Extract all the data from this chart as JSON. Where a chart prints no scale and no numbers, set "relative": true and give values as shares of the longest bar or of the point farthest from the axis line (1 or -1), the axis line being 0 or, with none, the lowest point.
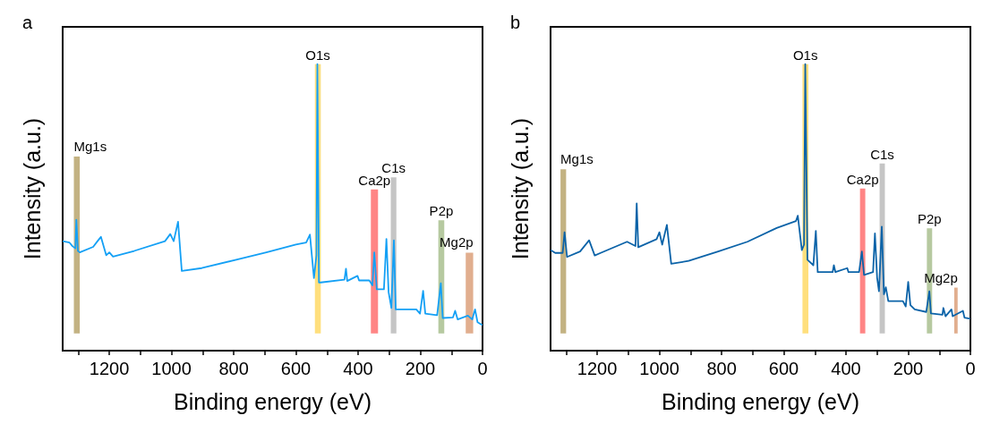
{
  "chart_data": [
    {
      "type": "line",
      "title": "a",
      "xlabel": "Binding energy (eV)",
      "ylabel": "Intensity (a.u.)",
      "relative": true,
      "tick_labels": "x",
      "grid": false,
      "marker": "none",
      "line_style": "solid",
      "xlim": [
        1350,
        0
      ],
      "xticks": [
        {
          "value": 1300,
          "label": null
        },
        1200,
        {
          "value": 1100,
          "label": null
        },
        1000,
        {
          "value": 900,
          "label": null
        },
        800,
        {
          "value": 700,
          "label": null
        },
        600,
        {
          "value": 500,
          "label": null
        },
        400,
        {
          "value": 300,
          "label": null
        },
        200,
        {
          "value": 100,
          "label": null
        },
        0
      ],
      "bands": [
        {
          "axis": "x",
          "from": 1295,
          "to": 1314,
          "label": "Mg1s",
          "color": "#b8a46c"
        },
        {
          "axis": "x",
          "from": 520,
          "to": 539,
          "label": "O1s",
          "color": "#ffd966"
        },
        {
          "axis": "x",
          "from": 336,
          "to": 359,
          "label": "Ca2p",
          "color": "#ff7070"
        },
        {
          "axis": "x",
          "from": 277,
          "to": 295,
          "label": "C1s",
          "color": "#bbbbbb"
        },
        {
          "axis": "x",
          "from": 123,
          "to": 142,
          "label": "P2p",
          "color": "#a9c08f"
        },
        {
          "axis": "x",
          "from": 30,
          "to": 54,
          "label": "Mg2p",
          "color": "#dca07a"
        }
      ],
      "series": [
        {
          "color": "#14a0f5",
          "x": [
            1350,
            1328,
            1318,
            1309,
            1306,
            1301,
            1295,
            1252,
            1238,
            1227,
            1210,
            1200,
            1188,
            1120,
            1021,
            1004,
            993,
            979,
            967,
            903,
            789,
            695,
            600,
            567,
            555,
            542,
            534,
            531,
            526,
            520,
            444,
            439,
            435,
            402,
            397,
            364,
            354,
            348,
            340,
            317,
            309,
            302,
            293,
            285,
            279,
            213,
            201,
            191,
            184,
            146,
            134,
            128,
            95,
            88,
            80,
            47,
            33,
            24,
            16,
            0
          ],
          "values": [
            0.382,
            0.377,
            0.364,
            0.357,
            0.457,
            0.348,
            0.343,
            0.362,
            0.382,
            0.397,
            0.333,
            0.343,
            0.328,
            0.348,
            0.382,
            0.407,
            0.382,
            0.45,
            0.278,
            0.288,
            0.318,
            0.343,
            0.37,
            0.377,
            0.405,
            0.253,
            0.333,
            1.0,
            0.238,
            0.238,
            0.248,
            0.286,
            0.243,
            0.261,
            0.245,
            0.245,
            0.228,
            0.343,
            0.214,
            0.214,
            0.39,
            0.204,
            0.149,
            0.385,
            0.144,
            0.144,
            0.129,
            0.209,
            0.129,
            0.124,
            0.235,
            0.114,
            0.116,
            0.139,
            0.109,
            0.122,
            0.109,
            0.144,
            0.099,
            0.089
          ]
        }
      ]
    },
    {
      "type": "line",
      "title": "b",
      "xlabel": "Binding energy (eV)",
      "ylabel": "Intensity (a.u.)",
      "relative": true,
      "tick_labels": "x",
      "grid": false,
      "marker": "none",
      "line_style": "solid",
      "xlim": [
        1350,
        0
      ],
      "xticks": [
        {
          "value": 1300,
          "label": null
        },
        1200,
        {
          "value": 1100,
          "label": null
        },
        1000,
        {
          "value": 900,
          "label": null
        },
        800,
        {
          "value": 700,
          "label": null
        },
        600,
        {
          "value": 500,
          "label": null
        },
        400,
        {
          "value": 300,
          "label": null
        },
        200,
        {
          "value": 100,
          "label": null
        },
        0
      ],
      "bands": [
        {
          "axis": "x",
          "from": 1300,
          "to": 1318,
          "label": "Mg1s",
          "color": "#b8a46c"
        },
        {
          "axis": "x",
          "from": 521,
          "to": 540,
          "label": "O1s",
          "color": "#ffd966"
        },
        {
          "axis": "x",
          "from": 338,
          "to": 355,
          "label": "Ca2p",
          "color": "#ff7070"
        },
        {
          "axis": "x",
          "from": 275,
          "to": 292,
          "label": "C1s",
          "color": "#bbbbbb"
        },
        {
          "axis": "x",
          "from": 123,
          "to": 140,
          "label": "P2p",
          "color": "#a9c08f"
        },
        {
          "axis": "x",
          "from": 41,
          "to": 52,
          "label": "Mg2p",
          "color": "#dca07a"
        }
      ],
      "series": [
        {
          "color": "#0b63a8",
          "x": [
            1350,
            1335,
            1311,
            1305,
            1297,
            1255,
            1226,
            1208,
            1189,
            1104,
            1077,
            1073,
            1068,
            1009,
            1000,
            991,
            976,
            962,
            906,
            811,
            717,
            623,
            561,
            555,
            542,
            535,
            531,
            524,
            505,
            497,
            491,
            443,
            439,
            434,
            396,
            392,
            358,
            349,
            342,
            313,
            307,
            300,
            294,
            285,
            278,
            272,
            264,
            217,
            208,
            200,
            193,
            179,
            142,
            132,
            127,
            90,
            87,
            80,
            61,
            57,
            24,
            19,
            0
          ],
          "values": [
            0.351,
            0.341,
            0.341,
            0.413,
            0.327,
            0.346,
            0.385,
            0.332,
            0.341,
            0.38,
            0.365,
            0.514,
            0.361,
            0.389,
            0.413,
            0.37,
            0.439,
            0.303,
            0.313,
            0.346,
            0.38,
            0.428,
            0.452,
            0.471,
            0.351,
            0.37,
            1.0,
            0.317,
            0.298,
            0.418,
            0.274,
            0.274,
            0.298,
            0.274,
            0.288,
            0.274,
            0.274,
            0.346,
            0.264,
            0.274,
            0.409,
            0.255,
            0.207,
            0.433,
            0.197,
            0.221,
            0.173,
            0.173,
            0.154,
            0.24,
            0.159,
            0.144,
            0.135,
            0.207,
            0.13,
            0.125,
            0.149,
            0.12,
            0.144,
            0.12,
            0.139,
            0.115,
            0.111
          ]
        }
      ]
    }
  ]
}
